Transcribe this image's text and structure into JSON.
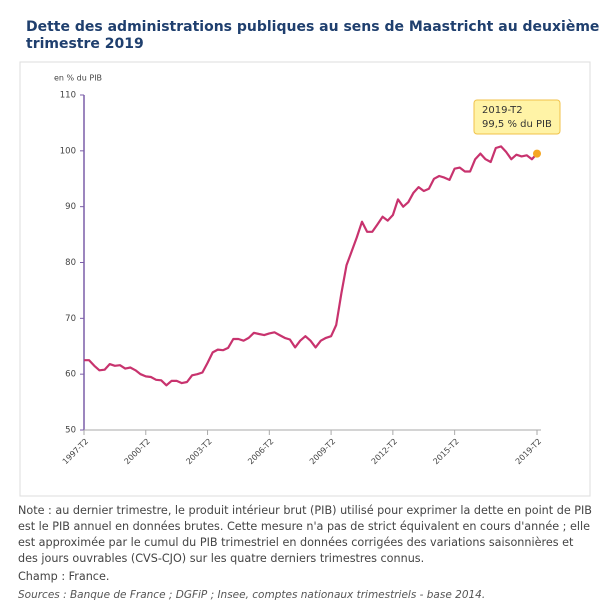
{
  "chart_data": {
    "type": "line",
    "title": "Dette des administrations publiques au sens de Maastricht au deuxième trimestre 2019",
    "y_label": "en % du PIB",
    "categories": [
      "1997-T2",
      null,
      null,
      null,
      null,
      null,
      null,
      null,
      null,
      null,
      null,
      null,
      "2000-T2",
      null,
      null,
      null,
      null,
      null,
      null,
      null,
      null,
      null,
      null,
      null,
      "2003-T2",
      null,
      null,
      null,
      null,
      null,
      null,
      null,
      null,
      null,
      null,
      null,
      "2006-T2",
      null,
      null,
      null,
      null,
      null,
      null,
      null,
      null,
      null,
      null,
      null,
      "2009-T2",
      null,
      null,
      null,
      null,
      null,
      null,
      null,
      null,
      null,
      null,
      null,
      "2012-T2",
      null,
      null,
      null,
      null,
      null,
      null,
      null,
      null,
      null,
      null,
      null,
      "2015-T2",
      null,
      null,
      null,
      null,
      null,
      null,
      null,
      null,
      null,
      null,
      null,
      null,
      null,
      null,
      null,
      "2019-T2"
    ],
    "series": [
      {
        "name": "Dette",
        "color": "#c8336e",
        "values": [
          62.5,
          62.5,
          61.5,
          60.7,
          60.8,
          61.8,
          61.5,
          61.6,
          61.0,
          61.2,
          60.7,
          60.0,
          59.6,
          59.5,
          59.0,
          58.9,
          58.0,
          58.8,
          58.8,
          58.4,
          58.6,
          59.8,
          60.0,
          60.3,
          62.0,
          63.9,
          64.4,
          64.3,
          64.7,
          66.3,
          66.3,
          66.0,
          66.5,
          67.4,
          67.2,
          67.0,
          67.3,
          67.5,
          67.0,
          66.5,
          66.2,
          64.8,
          66.0,
          66.8,
          66.0,
          64.8,
          66.0,
          66.5,
          66.8,
          68.8,
          74.5,
          79.5,
          82.0,
          84.5,
          87.3,
          85.5,
          85.5,
          86.8,
          88.2,
          87.5,
          88.5,
          91.3,
          90.0,
          90.8,
          92.5,
          93.5,
          92.8,
          93.2,
          95.0,
          95.5,
          95.2,
          94.8,
          96.8,
          97.0,
          96.3,
          96.3,
          98.5,
          99.5,
          98.5,
          98.0,
          100.5,
          100.8,
          99.8,
          98.5,
          99.3,
          99.0,
          99.2,
          98.5,
          99.5
        ]
      }
    ],
    "ylim": [
      50,
      110
    ],
    "yticks": [
      50,
      60,
      70,
      80,
      90,
      100,
      110
    ],
    "grid": false,
    "annotation": [
      "2019-T2",
      "99,5 % du PIB"
    ],
    "marker_color": "#f5a623"
  },
  "notes": {
    "note": "Note : au dernier trimestre, le produit intérieur brut (PIB) utilisé pour exprimer la dette en point de PIB est le PIB annuel en données brutes. Cette mesure n'a pas de strict équivalent en cours d'année ; elle est approximée par le cumul du PIB trimestriel en données corrigées des variations saisonnières et des jours ouvrables (CVS-CJO) sur les quatre derniers trimestres connus.",
    "scope": "Champ : France.",
    "sources": "Sources : Banque de France ; DGFiP ; Insee, comptes nationaux trimestriels - base 2014."
  }
}
